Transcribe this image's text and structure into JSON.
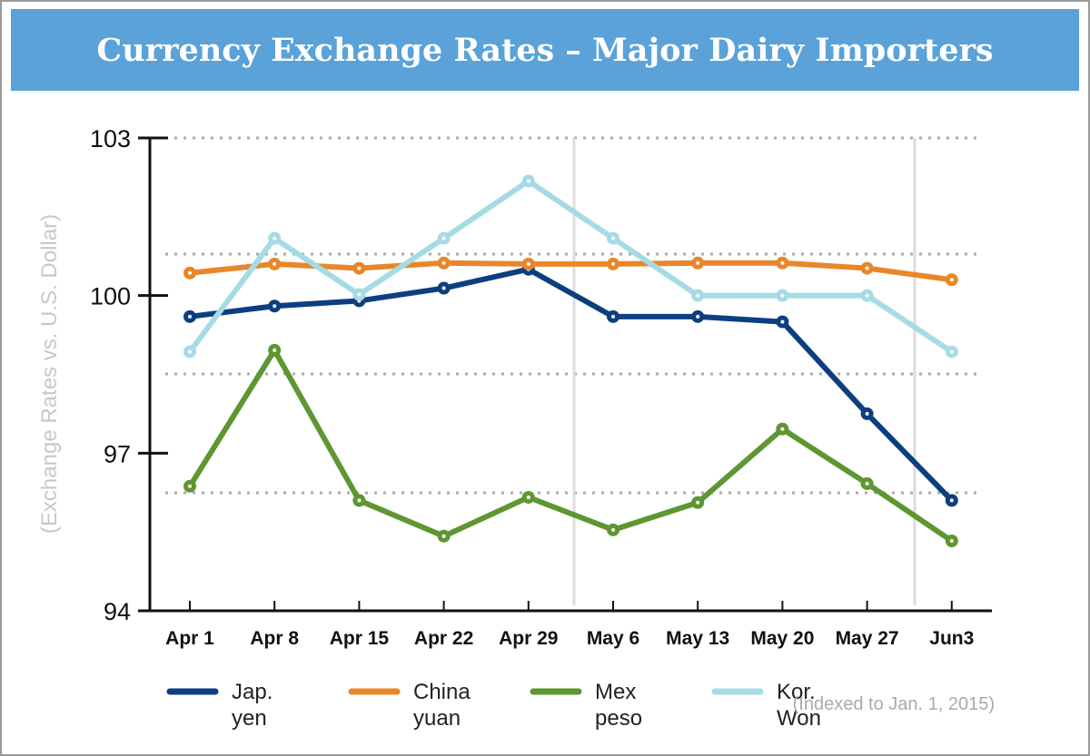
{
  "chart_data": {
    "type": "line",
    "title": "Currency Exchange Rates – Major Dairy Importers",
    "ylabel": "(Exchange Rates vs. U.S. Dollar)",
    "xlabel": "",
    "ylim": [
      94,
      103
    ],
    "yticks": [
      "103",
      "100",
      "97",
      "94"
    ],
    "categories": [
      "Apr 1",
      "Apr 8",
      "Apr 15",
      "Apr 22",
      "Apr 29",
      "May 6",
      "May 13",
      "May 20",
      "May 27",
      "Jun3"
    ],
    "grid": "dotted horizontal",
    "legend_position": "bottom",
    "note": "(Indexed to Jan. 1, 2015)",
    "series": [
      {
        "name": [
          "Jap.",
          "yen"
        ],
        "color": "#0d3f80",
        "values": [
          99.6,
          99.8,
          99.9,
          100.14,
          100.5,
          99.6,
          99.6,
          99.5,
          97.75,
          96.1
        ]
      },
      {
        "name": [
          "China",
          "yuan"
        ],
        "color": "#e8872a",
        "values": [
          100.43,
          100.6,
          100.52,
          100.62,
          100.6,
          100.6,
          100.62,
          100.62,
          100.52,
          100.3
        ]
      },
      {
        "name": [
          "Mex",
          "peso"
        ],
        "color": "#5e9631",
        "values": [
          96.37,
          98.96,
          96.1,
          95.42,
          96.16,
          95.54,
          96.06,
          97.46,
          96.42,
          95.33
        ]
      },
      {
        "name": [
          "Kor.",
          "Won"
        ],
        "color": "#a6dbe6",
        "values": [
          98.93,
          101.09,
          100.02,
          101.09,
          102.18,
          101.09,
          100.0,
          100.0,
          100.0,
          98.93
        ]
      }
    ]
  }
}
